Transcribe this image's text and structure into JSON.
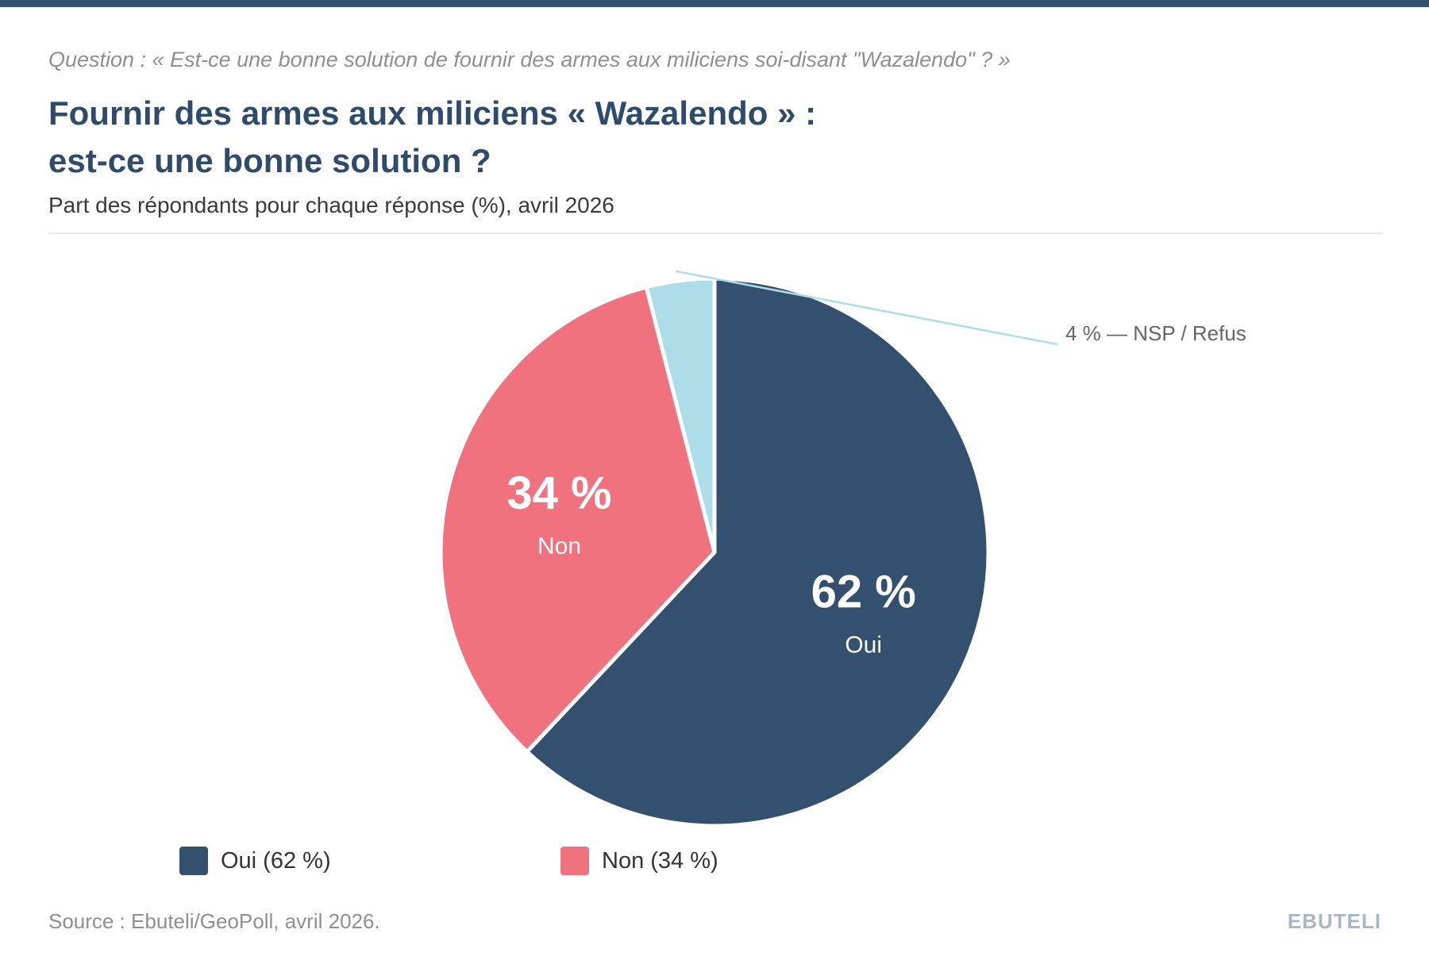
{
  "header": {
    "question": "Question : « Est-ce une bonne solution de fournir des armes aux miliciens soi-disant \"Wazalendo\" ? »",
    "title_line1": "Fournir des armes aux miliciens « Wazalendo » :",
    "title_line2": "est-ce une bonne solution ?",
    "subtitle": "Part des répondants pour chaque réponse (%), avril 2026"
  },
  "chart_data": {
    "type": "pie",
    "title": "Fournir des armes aux miliciens « Wazalendo » : est-ce une bonne solution ?",
    "subtitle": "Part des répondants pour chaque réponse (%), avril 2026",
    "slices": [
      {
        "name": "Oui",
        "value": 62,
        "label_value": "62 %",
        "label_name": "Oui",
        "color": "#34506f"
      },
      {
        "name": "Non",
        "value": 34,
        "label_value": "34 %",
        "label_name": "Non",
        "color": "#f0727e"
      },
      {
        "name": "NSP / Refus",
        "value": 4,
        "label_value": "4 % — NSP / Refus",
        "color": "#acdde9"
      }
    ],
    "legend": [
      {
        "label": "Oui (62 %)",
        "color": "#34506f"
      },
      {
        "label": "Non (34 %)",
        "color": "#f0727e"
      }
    ],
    "legend_position": "bottom"
  },
  "footer": {
    "source": "Source : Ebuteli/GeoPoll, avril 2026.",
    "brand": "EBUTELI"
  }
}
